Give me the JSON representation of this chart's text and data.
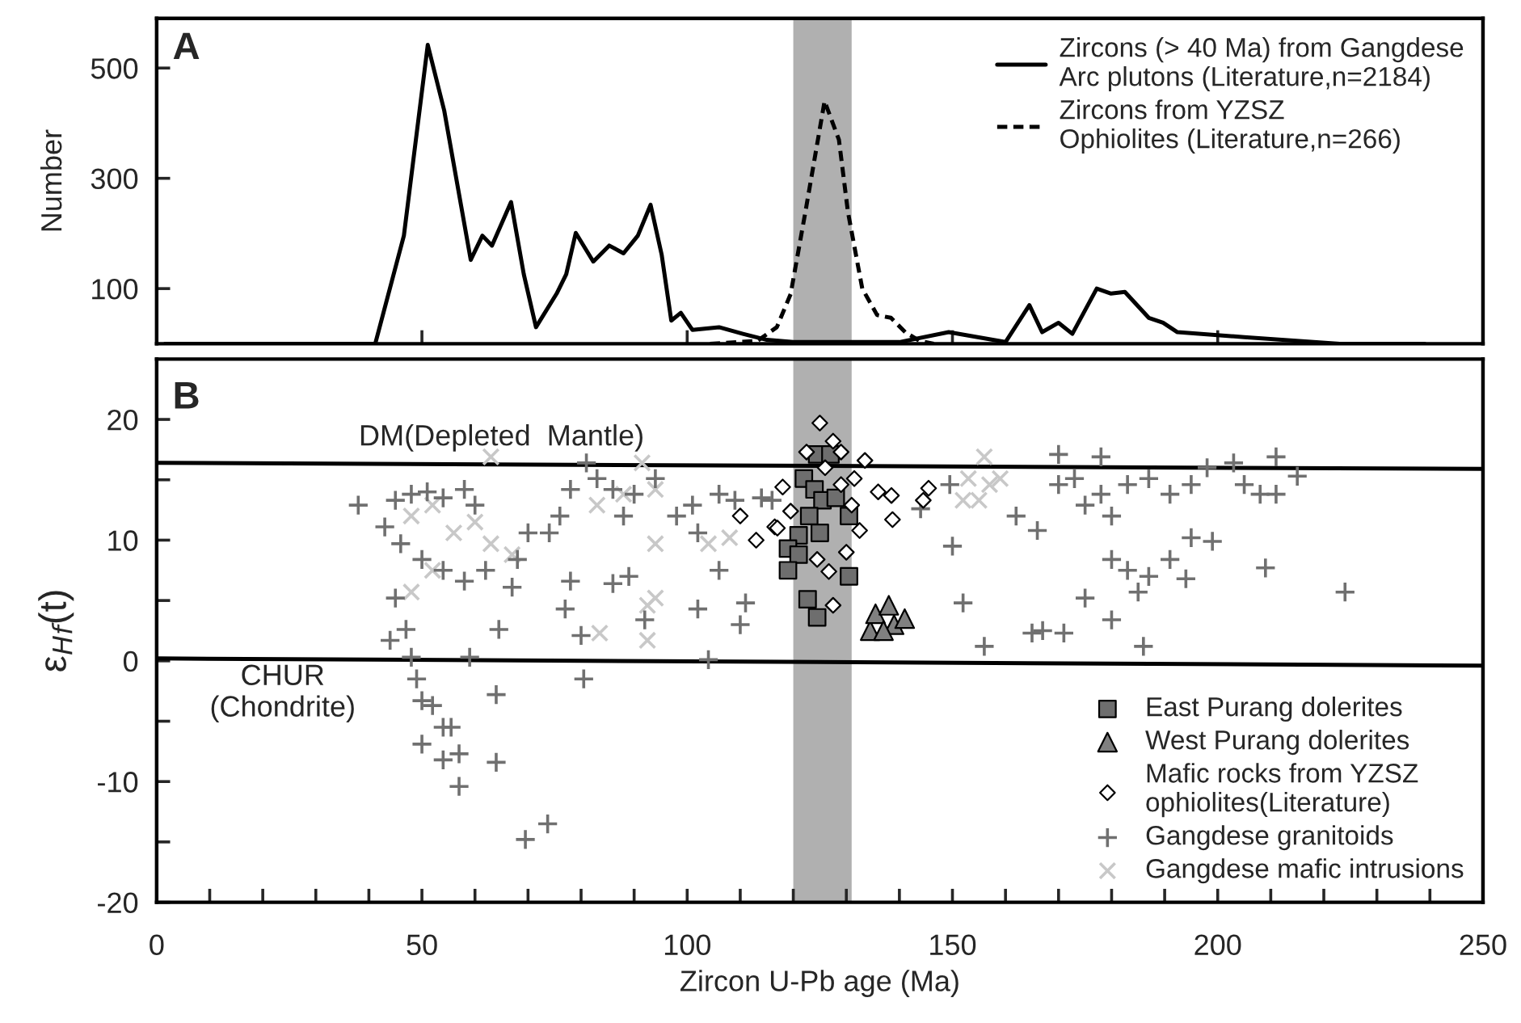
{
  "chart_data": [
    {
      "type": "line",
      "ylabel": "Number",
      "annotations": [
        "A"
      ],
      "xlim": [
        0,
        250
      ],
      "xticks": [
        {
          "value": 50,
          "label": null
        },
        {
          "value": 100,
          "label": null
        },
        {
          "value": 150,
          "label": null
        },
        {
          "value": 200,
          "label": null
        }
      ],
      "ylim": [
        0,
        590
      ],
      "yticks": [
        100,
        300,
        500
      ],
      "tick_labels": "y",
      "legend": "top right",
      "bands": [
        {
          "axis": "x",
          "from": 120,
          "to": 131,
          "color": "#b0b0b0"
        }
      ],
      "series": [
        {
          "name": "Zircons (> 40 Ma) from Gangdese\nArc plutons (Literature,n=2184)",
          "color": "#000000",
          "line_style": "solid",
          "x": [
            1.6,
            41.2,
            46.6,
            51.1,
            54.2,
            59.2,
            61.4,
            63.2,
            66.8,
            69.2,
            71.5,
            75.4,
            77.2,
            79.0,
            82.3,
            85.3,
            88.0,
            90.7,
            93.1,
            95.2,
            97.0,
            98.8,
            101,
            106,
            110.5,
            115,
            120,
            140,
            149.3,
            160,
            164.5,
            166.9,
            170,
            172.6,
            177.2,
            179.9,
            182.5,
            187,
            189.7,
            192.4,
            205,
            223,
            239
          ],
          "values": [
            0,
            0,
            196,
            542,
            423,
            152,
            196,
            178,
            257,
            126,
            30,
            91,
            126,
            201,
            149,
            178,
            164,
            196,
            252,
            161,
            42,
            56,
            25,
            30,
            18,
            7,
            3,
            3,
            21,
            3,
            70,
            21,
            38,
            18,
            100,
            91,
            94,
            47,
            38,
            21,
            12,
            0,
            0
          ]
        },
        {
          "name": "Zircons from YZSZ\nOphiolites (Literature,n=266)",
          "color": "#000000",
          "line_style": "dashed",
          "x": [
            104.3,
            113.2,
            116.9,
            119.5,
            122.3,
            125.9,
            128.6,
            130.3,
            133,
            135.8,
            138.4,
            141.1,
            143.8,
            146.5
          ],
          "values": [
            0,
            5,
            30,
            90,
            240,
            440,
            370,
            239,
            100,
            52,
            47,
            21,
            5,
            0
          ]
        }
      ]
    },
    {
      "type": "scatter",
      "xlabel": "Zircon U-Pb age (Ma)",
      "ylabel": "ε$_{Hf}$(t)",
      "xlim": [
        0,
        250
      ],
      "ylim": [
        -20,
        25
      ],
      "legend": "bottom right",
      "xticks": [
        0,
        {
          "value": 10,
          "label": null
        },
        {
          "value": 20,
          "label": null
        },
        {
          "value": 30,
          "label": null
        },
        {
          "value": 40,
          "label": null
        },
        50,
        {
          "value": 60,
          "label": null
        },
        {
          "value": 70,
          "label": null
        },
        {
          "value": 80,
          "label": null
        },
        {
          "value": 90,
          "label": null
        },
        100,
        {
          "value": 110,
          "label": null
        },
        {
          "value": 120,
          "label": null
        },
        {
          "value": 130,
          "label": null
        },
        {
          "value": 140,
          "label": null
        },
        150,
        {
          "value": 160,
          "label": null
        },
        {
          "value": 170,
          "label": null
        },
        {
          "value": 180,
          "label": null
        },
        {
          "value": 190,
          "label": null
        },
        200,
        {
          "value": 210,
          "label": null
        },
        {
          "value": 220,
          "label": null
        },
        {
          "value": 230,
          "label": null
        },
        {
          "value": 240,
          "label": null
        },
        250
      ],
      "yticks": [
        {
          "value": -20,
          "label": "-20"
        },
        {
          "value": -15,
          "label": null
        },
        {
          "value": -10,
          "label": "-10"
        },
        {
          "value": -5,
          "label": null
        },
        0,
        {
          "value": 5,
          "label": null
        },
        10,
        {
          "value": 15,
          "label": null
        },
        20
      ],
      "annotations": [
        "B",
        "DM(Depleted  Mantle)",
        "CHUR\n(Chondrite)"
      ],
      "bands": [
        {
          "axis": "x",
          "from": 120,
          "to": 131,
          "color": "#b0b0b0"
        }
      ],
      "series": [
        {
          "type": "line",
          "color": "#000000",
          "x": [
            0,
            250
          ],
          "values": [
            16.4,
            15.9
          ]
        },
        {
          "type": "line",
          "color": "#000000",
          "x": [
            0,
            250
          ],
          "values": [
            0.2,
            -0.4
          ]
        },
        {
          "name": "East Purang dolerites",
          "marker": "square",
          "color": "#6e6e6e",
          "x": [
            124.5,
            127,
            122,
            124,
            125.5,
            128,
            123,
            125,
            121,
            119,
            121,
            119,
            130.5,
            122.7,
            124.5,
            130.5
          ],
          "values": [
            17.1,
            17.1,
            15.1,
            14.2,
            13.3,
            13.5,
            12,
            10.6,
            10.4,
            9.3,
            8.8,
            7.5,
            7,
            5.1,
            3.6,
            12
          ]
        },
        {
          "name": "West Purang dolerites",
          "marker": "triangle",
          "color": "#808080",
          "x": [
            134.5,
            135.5,
            138,
            139,
            141,
            137
          ],
          "values": [
            2.5,
            3.9,
            4.6,
            3,
            3.5,
            2.5
          ]
        },
        {
          "name": "Mafic rocks from YZSZ\nophiolites(Literature)",
          "marker": "diamond",
          "color": "#ffffff",
          "x": [
            125,
            127.5,
            122.5,
            133.5,
            129,
            131.5,
            118,
            136,
            138.5,
            138.7,
            145.5,
            144.5,
            116.5,
            130,
            126.7,
            127.5,
            124.5,
            132.5,
            119.5,
            110,
            113,
            117,
            126,
            129,
            131
          ],
          "values": [
            19.7,
            18.2,
            17.3,
            16.6,
            17.3,
            15.1,
            14.4,
            14,
            13.7,
            11.7,
            14.3,
            13.3,
            11.1,
            9,
            7.4,
            4.6,
            8.4,
            10.8,
            12.4,
            12,
            10,
            11,
            16,
            14.6,
            12.9
          ]
        },
        {
          "name": "Gangdese granitoids",
          "marker": "cross",
          "color": "#707070",
          "x": [
            38,
            43,
            45,
            48,
            51,
            54,
            58,
            60,
            46,
            50,
            54,
            58,
            62,
            67,
            68,
            70,
            45,
            44,
            47,
            48,
            49,
            50,
            52,
            54,
            55.5,
            50,
            54,
            57,
            57,
            64,
            64,
            59,
            69.5,
            73.7,
            74,
            76,
            78,
            81,
            78,
            77,
            80,
            80.5,
            83,
            86,
            88,
            90,
            94,
            98,
            101,
            102,
            106,
            109,
            106,
            102,
            111,
            110,
            104,
            114,
            92,
            89,
            86,
            64.5,
            116,
            144,
            149.5,
            150,
            152,
            156,
            162,
            166,
            165,
            167,
            171,
            170,
            170,
            173,
            175,
            178,
            178,
            180,
            183,
            187,
            191,
            195,
            198,
            203,
            205,
            211,
            215,
            208,
            211,
            180,
            183,
            187,
            191,
            195,
            199,
            185,
            175,
            180,
            186,
            209,
            224,
            194
          ],
          "values": [
            12.9,
            11.1,
            13.3,
            13.8,
            14,
            13.5,
            14.2,
            12.9,
            9.7,
            8.4,
            7.5,
            6.6,
            7.5,
            6.1,
            8.4,
            10.6,
            5.2,
            1.7,
            2.6,
            0.3,
            -1.5,
            -3.3,
            -3.7,
            -5.5,
            -5.5,
            -6.9,
            -8.2,
            -7.7,
            -10.4,
            -8.4,
            -2.8,
            0.3,
            -14.8,
            -13.5,
            10.6,
            12,
            14.2,
            16.4,
            6.6,
            4.3,
            2.1,
            -1.5,
            15.1,
            14.2,
            12,
            13.8,
            15.1,
            12,
            12.9,
            10.6,
            13.8,
            13.3,
            7.5,
            4.3,
            4.8,
            3,
            0.1,
            13.5,
            3.4,
            7,
            6.4,
            2.6,
            13.3,
            12.6,
            14.6,
            9.5,
            4.8,
            1.2,
            12,
            10.8,
            2.3,
            2.5,
            2.3,
            17.1,
            14.6,
            15.1,
            12.9,
            16.9,
            13.8,
            12,
            14.6,
            15.1,
            13.8,
            14.6,
            16,
            16.4,
            14.6,
            16.9,
            15.3,
            13.8,
            13.8,
            8.4,
            7.5,
            7,
            8.4,
            10.2,
            9.9,
            5.7,
            5.2,
            3.4,
            1.2,
            7.7,
            5.7,
            6.8
          ]
        },
        {
          "name": "Gangdese mafic intrusions",
          "marker": "x",
          "color": "#c8c8c8",
          "x": [
            48,
            52,
            56,
            60,
            63,
            67,
            52,
            48,
            63,
            83,
            88,
            91.5,
            94,
            94,
            94,
            92.5,
            92.5,
            83.5,
            104,
            108,
            153,
            156,
            157,
            155,
            159,
            152
          ],
          "values": [
            12,
            12.9,
            10.6,
            11.5,
            9.7,
            8.8,
            7.5,
            5.7,
            16.9,
            12.9,
            13.8,
            16.4,
            14.2,
            9.7,
            5.2,
            1.7,
            4.6,
            2.3,
            9.7,
            10.2,
            15.1,
            16.9,
            14.6,
            13.3,
            15.1,
            13.3
          ]
        }
      ]
    }
  ]
}
